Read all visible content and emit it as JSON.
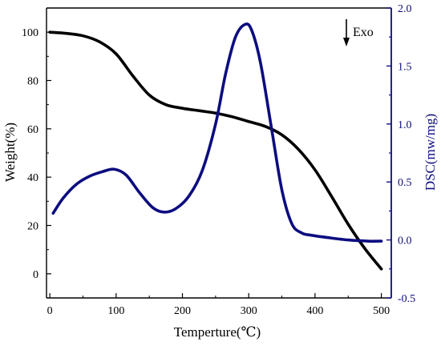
{
  "chart_data": {
    "type": "line",
    "xlabel": "Temperture(℃)",
    "ylabel_left": "Weight(%)",
    "ylabel_right": "DSC(mw/mg)",
    "xlim": [
      -5,
      515
    ],
    "ylim_left": [
      -10,
      110
    ],
    "ylim_right": [
      -0.5,
      2.0
    ],
    "xticks": [
      0,
      100,
      200,
      300,
      400,
      500
    ],
    "yticks_left": [
      0,
      20,
      40,
      60,
      80,
      100
    ],
    "yticks_right": [
      -0.5,
      0.0,
      0.5,
      1.0,
      1.5,
      2.0
    ],
    "xtick_labels": [
      "0",
      "100",
      "200",
      "300",
      "400",
      "500"
    ],
    "ytick_labels_left": [
      "0",
      "20",
      "40",
      "60",
      "80",
      "100"
    ],
    "ytick_labels_right": [
      "-0.5",
      "0.0",
      "0.5",
      "1.0",
      "1.5",
      "2.0"
    ],
    "annotation": "Exo",
    "grid": false,
    "colors": {
      "weight": "#000000",
      "dsc": "#0d0d80",
      "right_axis": "#0d0d80"
    },
    "series": [
      {
        "axis": "left",
        "x": [
          0,
          25,
          50,
          75,
          100,
          125,
          150,
          175,
          200,
          225,
          250,
          275,
          300,
          325,
          350,
          375,
          400,
          425,
          450,
          475,
          500
        ],
        "values": [
          100,
          99.5,
          98.5,
          96,
          91,
          82,
          74,
          70,
          68.5,
          67.5,
          66.5,
          65,
          63,
          61,
          57.5,
          51.5,
          43,
          32,
          20.5,
          10.5,
          2
        ]
      },
      {
        "axis": "right",
        "x": [
          5,
          20,
          40,
          60,
          80,
          97,
          115,
          135,
          155,
          172,
          190,
          210,
          230,
          250,
          265,
          280,
          295,
          305,
          318,
          335,
          350,
          365,
          380,
          395,
          420,
          450,
          480,
          500
        ],
        "values": [
          0.23,
          0.36,
          0.48,
          0.55,
          0.59,
          0.61,
          0.56,
          0.41,
          0.28,
          0.24,
          0.27,
          0.38,
          0.6,
          1.0,
          1.43,
          1.75,
          1.86,
          1.8,
          1.52,
          0.94,
          0.43,
          0.14,
          0.06,
          0.04,
          0.02,
          0.0,
          -0.01,
          -0.01
        ]
      }
    ]
  }
}
